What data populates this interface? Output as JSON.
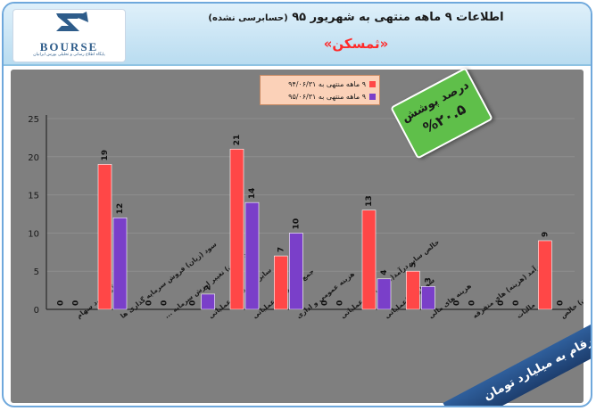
{
  "header": {
    "title": "اطلاعات ۹ ماهه منتهی به شهریور ۹۵",
    "title_note": "(حسابرسی نشده)",
    "company": "«ثمسکن»"
  },
  "logo": {
    "word": "BOURSE",
    "subtitle": "پایگاه اطلاع رسانی و تحلیلی بورس ایرانیان"
  },
  "badge": {
    "label": "درصد پوشش",
    "value": "%۲۰.۵"
  },
  "units_banner": "ارقام به میلیارد تومان",
  "chart_data": {
    "type": "bar",
    "categories": [
      "درآمد سود سهام",
      "سود (زیان) فروش سرمایه گذاری ها",
      "سود (زیان) تغییر ارزش سرمایه ...",
      "سایر درآمدهای عملیاتی",
      "جمع درآمدهای عملیاتی",
      "هزینه عمومی و اداری",
      "خالص سایر درآمد(هزینه)های عملیاتی",
      "سود(زیان)عملیاتی",
      "هزینه های مالی",
      "درآمد (هزینه) های متفرقه",
      "مالیات",
      "سود(زیان) خالص"
    ],
    "series": [
      {
        "name": "۹ ماهه منتهی به ۹۴/۰۶/۳۱",
        "values": [
          0,
          19,
          0,
          0,
          21,
          7,
          0,
          13,
          5,
          0,
          0,
          9
        ]
      },
      {
        "name": "۹ ماهه منتهی به ۹۵/۰۶/۳۱",
        "values": [
          0,
          12,
          0,
          2,
          14,
          10,
          0,
          4,
          3,
          0,
          0,
          0
        ]
      }
    ],
    "ylim": [
      0,
      25
    ],
    "yticks": [
      0,
      5,
      10,
      15,
      20,
      25
    ],
    "series_colors": [
      "#ff4747",
      "#7a3fc9"
    ],
    "grid": true,
    "legend": "top-center"
  }
}
